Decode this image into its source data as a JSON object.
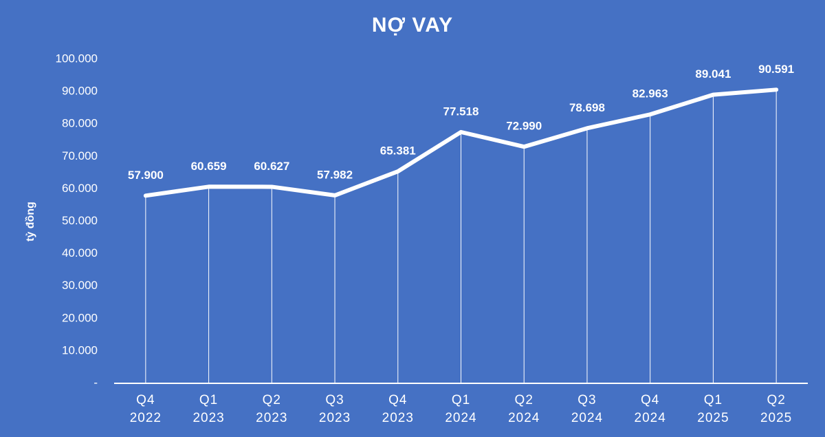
{
  "chart_data": {
    "type": "line",
    "title": "NỢ VAY",
    "y_label": "tỷ đồng",
    "categories": [
      "Q4 2022",
      "Q1 2023",
      "Q2 2023",
      "Q3 2023",
      "Q4 2023",
      "Q1 2024",
      "Q2 2024",
      "Q3 2024",
      "Q4 2024",
      "Q1 2025",
      "Q2 2025"
    ],
    "values": [
      57900,
      60659,
      60627,
      57982,
      65381,
      77518,
      72990,
      78698,
      82963,
      89041,
      90591
    ],
    "value_labels": [
      "57.900",
      "60.659",
      "60.627",
      "57.982",
      "65.381",
      "77.518",
      "72.990",
      "78.698",
      "82.963",
      "89.041",
      "90.591"
    ],
    "color": "#ffffff",
    "ylim": [
      0,
      100000
    ],
    "yticks": [
      {
        "value": 0,
        "label": "-"
      },
      {
        "value": 10000,
        "label": "10.000"
      },
      {
        "value": 20000,
        "label": "20.000"
      },
      {
        "value": 30000,
        "label": "30.000"
      },
      {
        "value": 40000,
        "label": "40.000"
      },
      {
        "value": 50000,
        "label": "50.000"
      },
      {
        "value": 60000,
        "label": "60.000"
      },
      {
        "value": 70000,
        "label": "70.000"
      },
      {
        "value": 80000,
        "label": "80.000"
      },
      {
        "value": 90000,
        "label": "90.000"
      },
      {
        "value": 100000,
        "label": "100.000"
      }
    ],
    "drop_lines": true
  }
}
